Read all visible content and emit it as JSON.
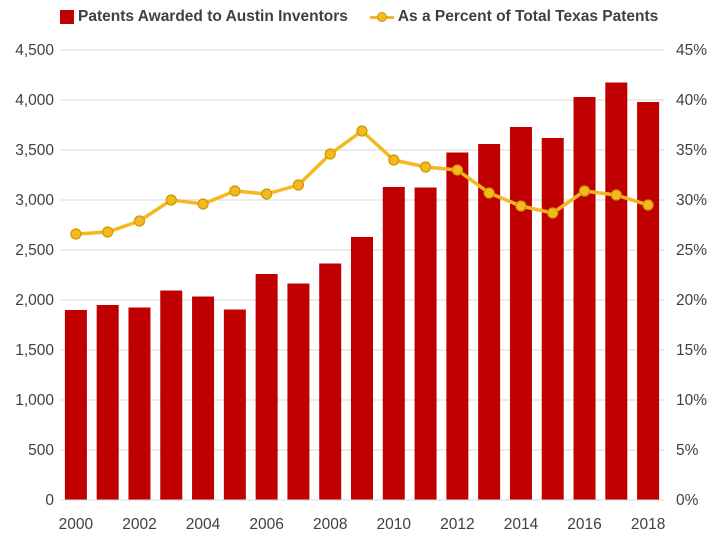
{
  "colors": {
    "bar": "#c00000",
    "line": "#f5b820",
    "marker_border": "#c99a00",
    "grid": "#d9d9d9"
  },
  "legend": {
    "series1": "Patents Awarded to Austin Inventors",
    "series2": "As a Percent of Total Texas Patents"
  },
  "chart_data": {
    "type": "bar",
    "x": [
      2000,
      2001,
      2002,
      2003,
      2004,
      2005,
      2006,
      2007,
      2008,
      2009,
      2010,
      2011,
      2012,
      2013,
      2014,
      2015,
      2016,
      2017,
      2018
    ],
    "x_tick_labels": [
      "2000",
      "2002",
      "2004",
      "2006",
      "2008",
      "2010",
      "2012",
      "2014",
      "2016",
      "2018"
    ],
    "series": [
      {
        "name": "Patents Awarded to Austin Inventors",
        "type": "bar",
        "axis": "left",
        "values": [
          1900,
          1950,
          1925,
          2095,
          2035,
          1905,
          2260,
          2165,
          2365,
          2630,
          3130,
          3125,
          3475,
          3560,
          3730,
          3620,
          4030,
          4175,
          3980
        ]
      },
      {
        "name": "As a Percent of Total Texas Patents",
        "type": "line",
        "axis": "right",
        "values": [
          26.6,
          26.8,
          27.9,
          30.0,
          29.6,
          30.9,
          30.6,
          31.5,
          34.6,
          36.9,
          34.0,
          33.3,
          33.0,
          30.7,
          29.4,
          28.7,
          30.9,
          30.5,
          29.5
        ]
      }
    ],
    "y_left": {
      "lim": [
        0,
        4500
      ],
      "ticks": [
        "0",
        "500",
        "1,000",
        "1,500",
        "2,000",
        "2,500",
        "3,000",
        "3,500",
        "4,000",
        "4,500"
      ]
    },
    "y_right": {
      "lim": [
        0,
        45
      ],
      "ticks": [
        "0%",
        "5%",
        "10%",
        "15%",
        "20%",
        "25%",
        "30%",
        "35%",
        "40%",
        "45%"
      ]
    },
    "grid": true,
    "legend_position": "top"
  }
}
